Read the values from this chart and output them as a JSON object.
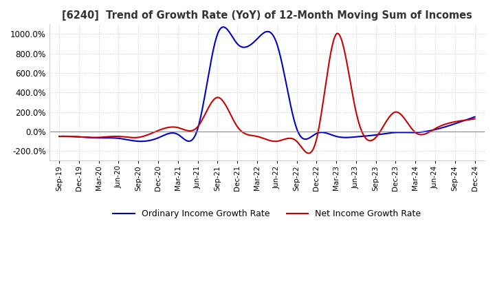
{
  "title": "[6240]  Trend of Growth Rate (YoY) of 12-Month Moving Sum of Incomes",
  "ylim": [
    -300,
    1100
  ],
  "yticks": [
    -200,
    0,
    200,
    400,
    600,
    800,
    1000
  ],
  "ytick_labels": [
    "-200.0%",
    "0.0%",
    "200.0%",
    "400.0%",
    "600.0%",
    "800.0%",
    "1000.0%"
  ],
  "background_color": "#ffffff",
  "plot_bg_color": "#ffffff",
  "grid_color": "#cccccc",
  "ordinary_color": "#0000cc",
  "net_color": "#cc0000",
  "legend_ordinary": "Ordinary Income Growth Rate",
  "legend_net": "Net Income Growth Rate",
  "dates": [
    "Sep-19",
    "Dec-19",
    "Mar-20",
    "Jun-20",
    "Sep-20",
    "Dec-20",
    "Mar-21",
    "Jun-21",
    "Sep-21",
    "Dec-21",
    "Mar-22",
    "Jun-22",
    "Sep-22",
    "Dec-22",
    "Mar-23",
    "Jun-23",
    "Sep-23",
    "Dec-23",
    "Mar-24",
    "Jun-24",
    "Sep-24",
    "Dec-24"
  ],
  "ordinary_values": [
    -50,
    -55,
    -65,
    -70,
    -100,
    -65,
    -30,
    30,
    1000,
    900,
    950,
    900,
    30,
    -20,
    -50,
    -55,
    -35,
    -10,
    -10,
    20,
    80,
    150
  ],
  "net_values": [
    -50,
    -55,
    -60,
    -50,
    -60,
    10,
    40,
    50,
    350,
    50,
    -50,
    -100,
    -100,
    -80,
    1000,
    200,
    -60,
    200,
    -10,
    30,
    100,
    130
  ]
}
